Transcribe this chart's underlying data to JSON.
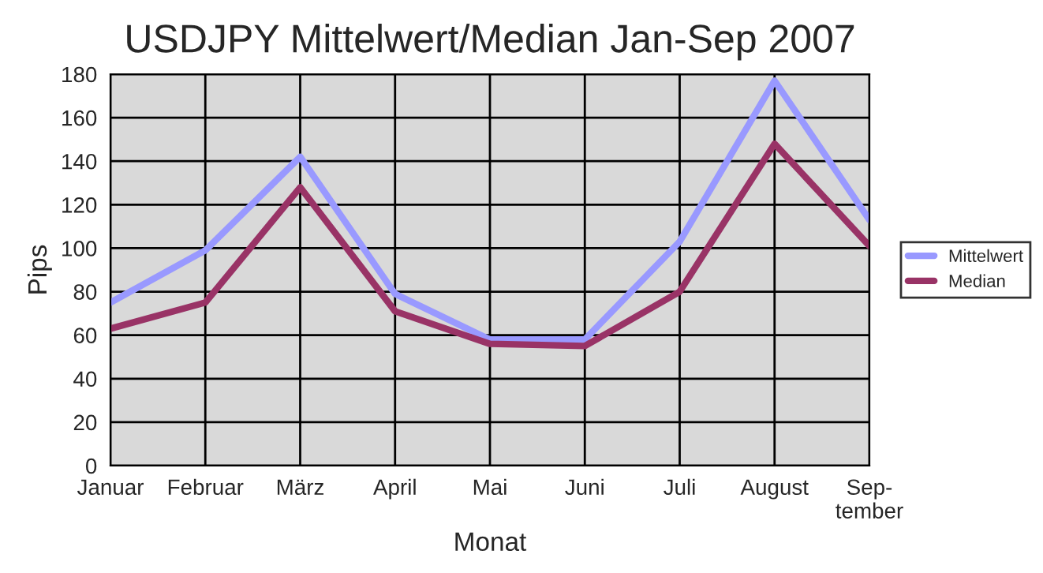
{
  "chart_data": {
    "type": "line",
    "title": "USDJPY Mittelwert/Median Jan-Sep 2007",
    "xlabel": "Monat",
    "ylabel": "Pips",
    "categories": [
      "Januar",
      "Februar",
      "März",
      "April",
      "Mai",
      "Juni",
      "Juli",
      "August",
      "Sep-\ntember"
    ],
    "series": [
      {
        "name": "Mittelwert",
        "color": "#9999ff",
        "values": [
          75,
          99,
          142,
          79,
          58,
          58,
          103,
          177,
          113
        ]
      },
      {
        "name": "Median",
        "color": "#993366",
        "values": [
          63,
          75,
          128,
          71,
          56,
          55,
          80,
          148,
          101
        ]
      }
    ],
    "ylim": [
      0,
      180
    ],
    "yticks": [
      0,
      20,
      40,
      60,
      80,
      100,
      120,
      140,
      160,
      180
    ],
    "grid": true,
    "legend": "right",
    "marker": "none",
    "line_style": "solid"
  }
}
